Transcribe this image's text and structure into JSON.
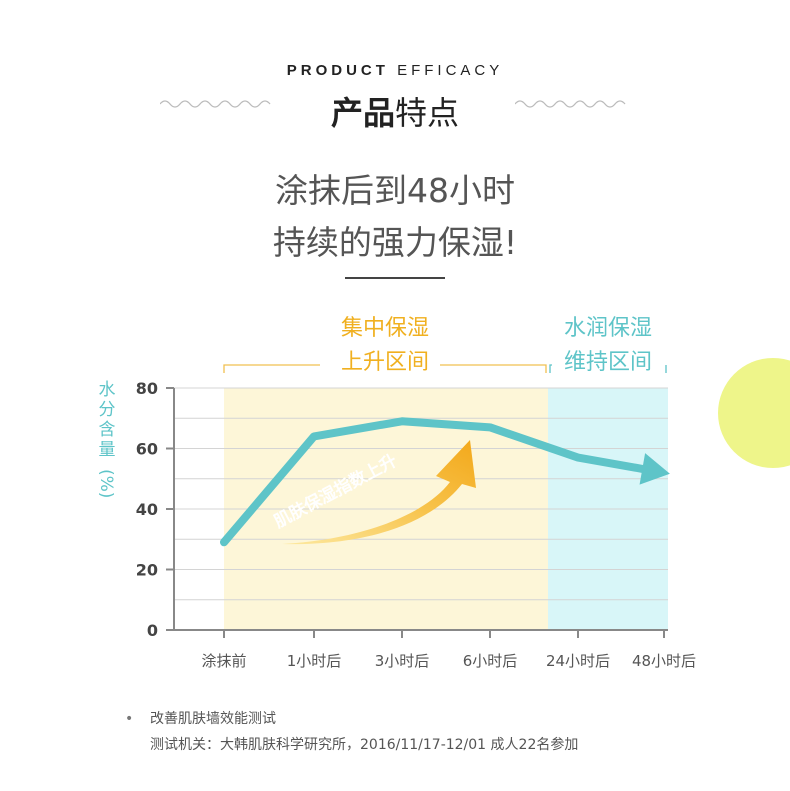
{
  "header": {
    "en_bold": "PRODUCT",
    "en_thin": "EFFICACY",
    "cn_bold": "产品",
    "cn_thin": "特点"
  },
  "headline": {
    "line1": "涂抹后到48小时",
    "line2": "持续的强力保湿!"
  },
  "zones": {
    "yellow_line1": "集中保湿",
    "yellow_line2": "上升区间",
    "teal_line1": "水润保湿",
    "teal_line2": "维持区间"
  },
  "colors": {
    "teal": "#5ec4c8",
    "yellow": "#f0b020",
    "yellow_zone": "#fdf6d8",
    "teal_zone": "#d8f6f8",
    "deco_circle": "#eef58a"
  },
  "chart_data": {
    "type": "line",
    "categories": [
      "涂抹前",
      "1小时后",
      "3小时后",
      "6小时后",
      "24小时后",
      "48小时后"
    ],
    "series": [
      {
        "values": [
          29,
          64,
          69,
          67,
          57,
          52
        ]
      }
    ],
    "yticks": [
      "80",
      "60",
      "40",
      "20",
      "0"
    ],
    "ylim": [
      0,
      80
    ],
    "ylabel_chars": [
      "水",
      "分",
      "含",
      "量"
    ],
    "ylabel_unit": "(%)",
    "arrow_label": "肌肤保湿指数上升",
    "grid": true
  },
  "notes": {
    "line1": "改善肌肤墙效能测试",
    "line2": "测试机关：大韩肌肤科学研究所，2016/11/17-12/01 成人22名参加"
  }
}
